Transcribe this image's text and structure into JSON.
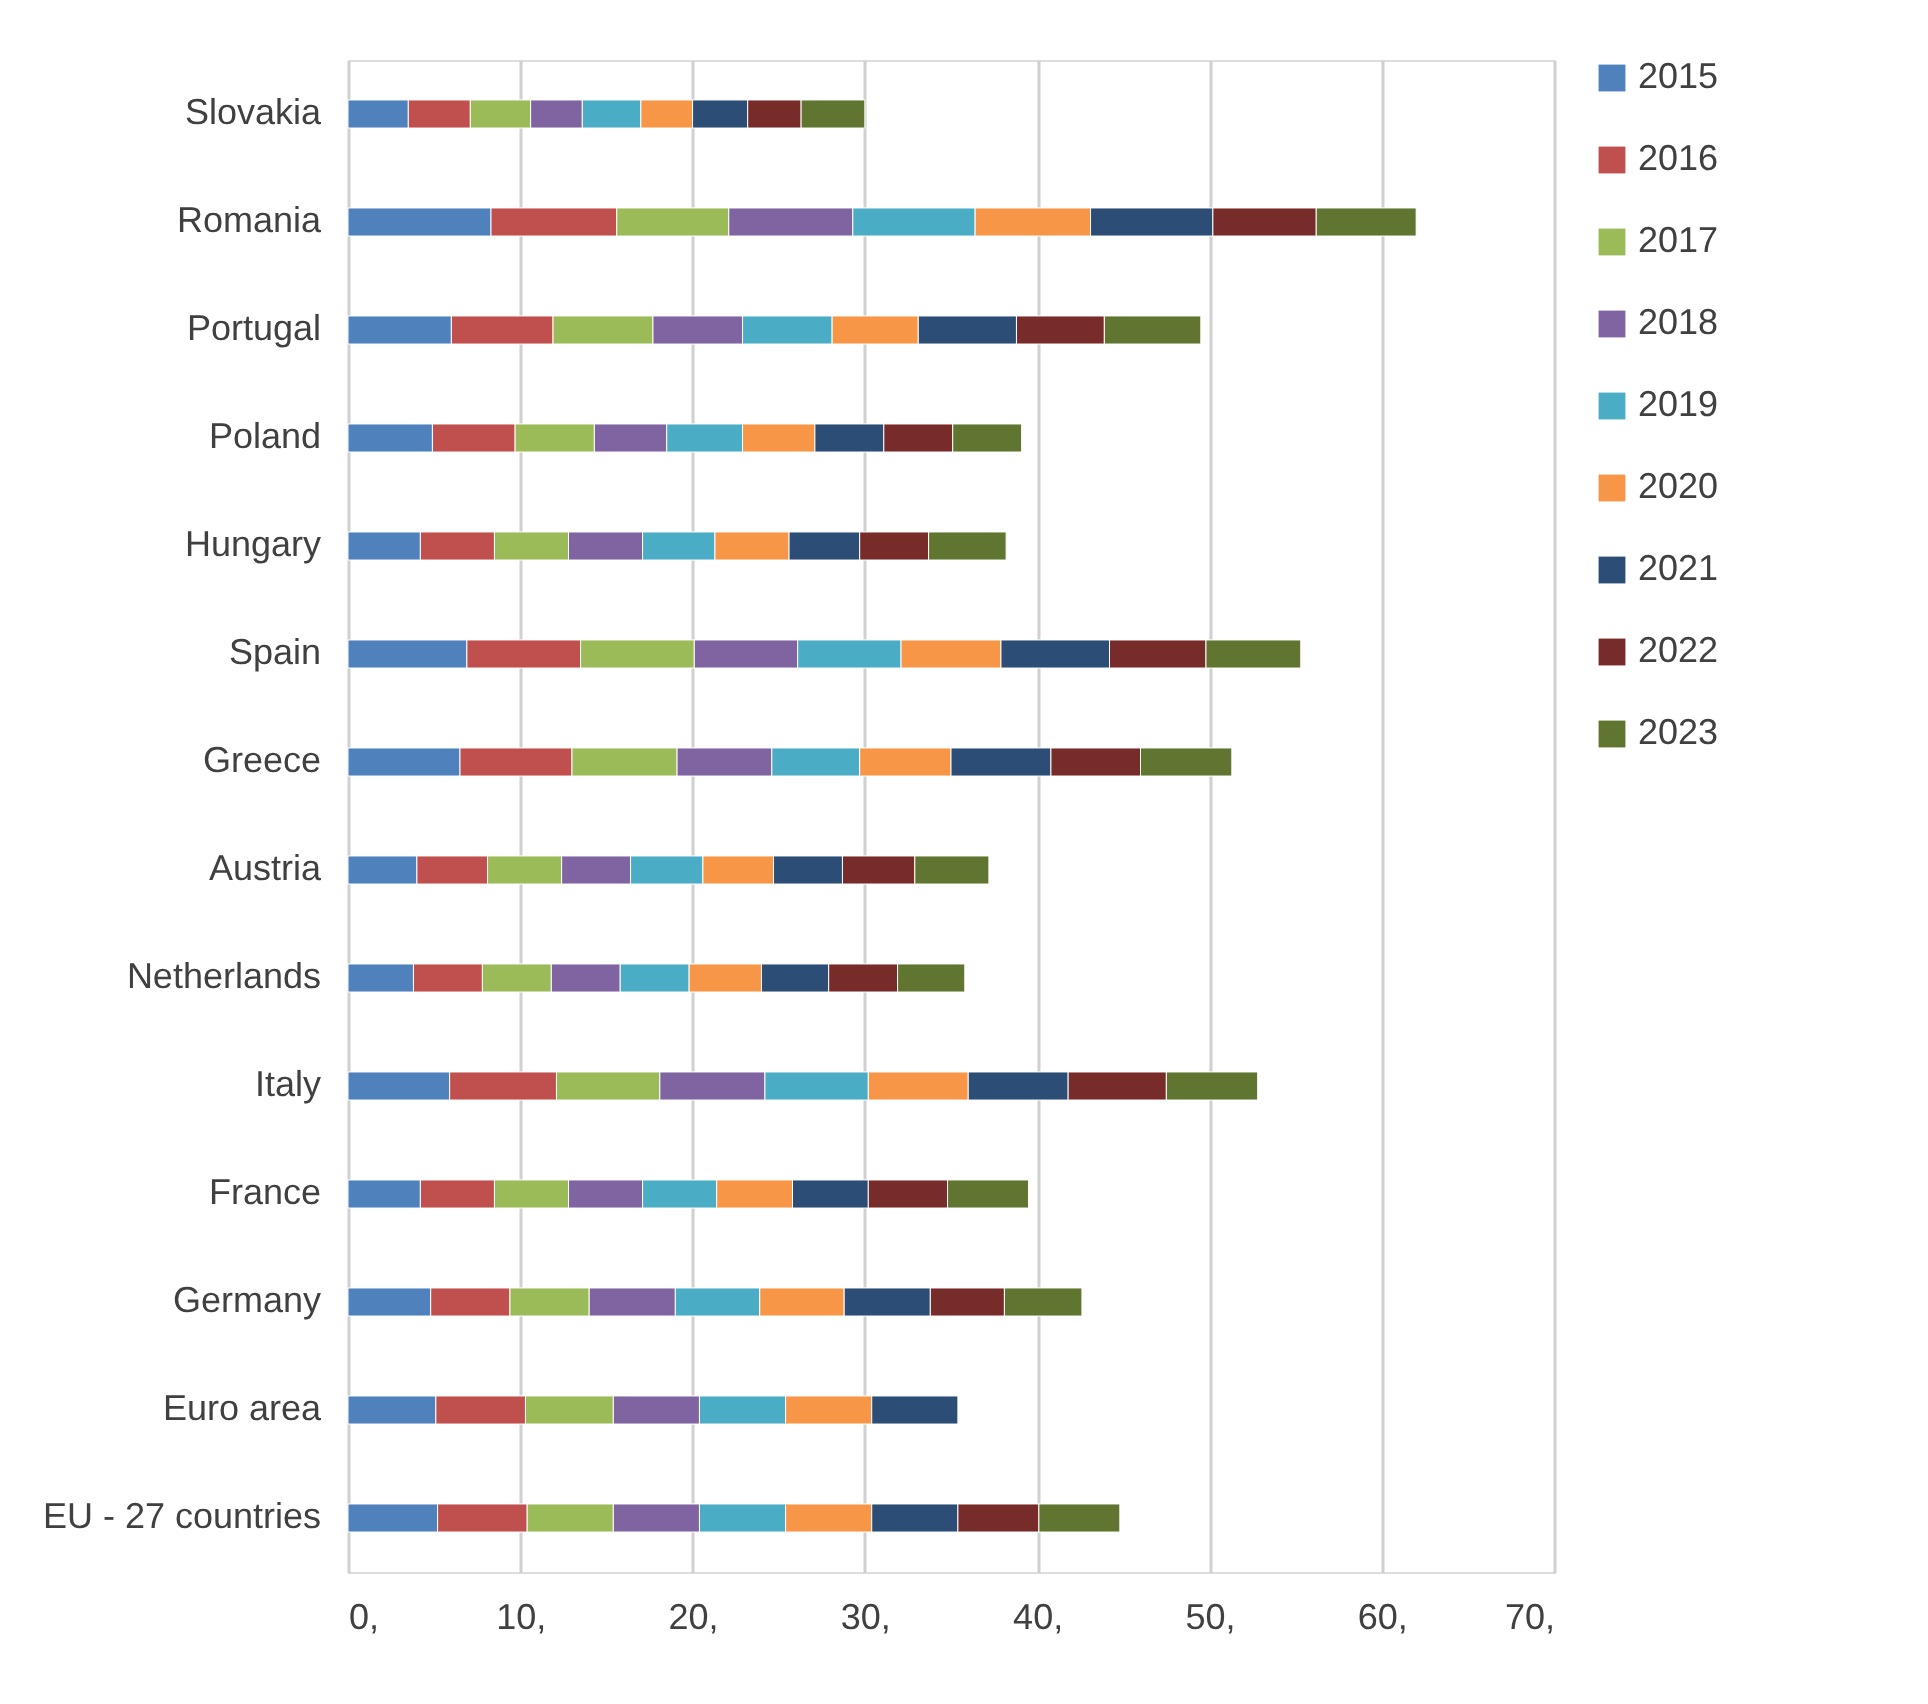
{
  "chart_data": {
    "type": "bar",
    "orientation": "horizontal",
    "stacked": true,
    "categories": [
      "Slovakia",
      "Romania",
      "Portugal",
      "Poland",
      "Hungary",
      "Spain",
      "Greece",
      "Austria",
      "Netherlands",
      "Italy",
      "France",
      "Germany",
      "Euro area",
      "EU - 27 countries"
    ],
    "series": [
      {
        "name": "2015",
        "color": "#4f81bd",
        "values": [
          3.5,
          8.3,
          6.0,
          4.9,
          4.2,
          6.9,
          6.5,
          4.0,
          3.8,
          5.9,
          4.2,
          4.8,
          5.1,
          5.2
        ]
      },
      {
        "name": "2016",
        "color": "#c0504d",
        "values": [
          3.6,
          7.3,
          5.9,
          4.8,
          4.3,
          6.6,
          6.5,
          4.1,
          4.0,
          6.2,
          4.3,
          4.6,
          5.2,
          5.2
        ]
      },
      {
        "name": "2017",
        "color": "#9bbb59",
        "values": [
          3.5,
          6.5,
          5.8,
          4.6,
          4.3,
          6.6,
          6.1,
          4.3,
          4.0,
          6.0,
          4.3,
          4.6,
          5.1,
          5.0
        ]
      },
      {
        "name": "2018",
        "color": "#8064a2",
        "values": [
          3.0,
          7.2,
          5.2,
          4.2,
          4.3,
          6.0,
          5.5,
          4.0,
          4.0,
          6.1,
          4.3,
          5.0,
          5.0,
          5.0
        ]
      },
      {
        "name": "2019",
        "color": "#4bacc6",
        "values": [
          3.4,
          7.1,
          5.2,
          4.4,
          4.2,
          6.0,
          5.1,
          4.2,
          4.0,
          6.0,
          4.3,
          4.9,
          5.0,
          5.0
        ]
      },
      {
        "name": "2020",
        "color": "#f79646",
        "values": [
          3.0,
          6.7,
          5.0,
          4.2,
          4.3,
          5.8,
          5.3,
          4.1,
          4.2,
          5.8,
          4.4,
          4.9,
          5.0,
          5.0
        ]
      },
      {
        "name": "2021",
        "color": "#2c4d75",
        "values": [
          3.2,
          7.1,
          5.7,
          4.0,
          4.1,
          6.3,
          5.8,
          4.0,
          3.9,
          5.8,
          4.4,
          5.0,
          5.0,
          5.0
        ]
      },
      {
        "name": "2022",
        "color": "#772c2a",
        "values": [
          3.1,
          6.0,
          5.1,
          4.0,
          4.0,
          5.6,
          5.2,
          4.2,
          4.0,
          5.7,
          4.6,
          4.3,
          null,
          4.7
        ]
      },
      {
        "name": "2023",
        "color": "#5f7530",
        "values": [
          3.7,
          5.8,
          5.6,
          4.0,
          4.5,
          5.5,
          5.3,
          4.3,
          3.9,
          5.3,
          4.7,
          4.5,
          null,
          4.7
        ]
      }
    ],
    "xlim": [
      0,
      70
    ],
    "xticks": [
      {
        "value": 0,
        "label": "0,"
      },
      {
        "value": 10,
        "label": "10,"
      },
      {
        "value": 20,
        "label": "20,"
      },
      {
        "value": 30,
        "label": "30,"
      },
      {
        "value": 40,
        "label": "40,"
      },
      {
        "value": 50,
        "label": "50,"
      },
      {
        "value": 60,
        "label": "60,"
      },
      {
        "value": 70,
        "label": "70,"
      }
    ],
    "grid": "x",
    "legend": "right"
  }
}
